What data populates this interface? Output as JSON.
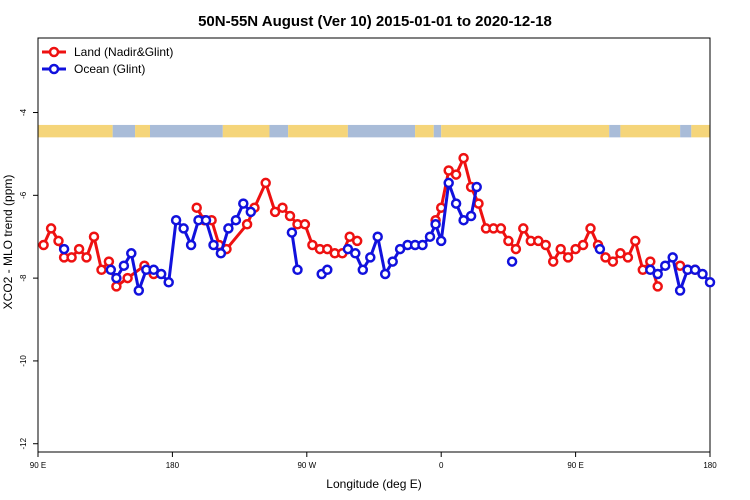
{
  "chart_data": {
    "type": "line",
    "title": "50N-55N August (Ver 10)   2015-01-01 to 2020-12-18",
    "xlabel": "Longitude (deg E)",
    "ylabel": "XCO2 - MLO trend (ppm)",
    "x_axis_note": "x values are positions along the axis in degrees, 0 = 90 E at left edge, 360 = 90 E at right edge",
    "xlim": [
      0,
      360
    ],
    "ylim": [
      -12.2,
      -2.2
    ],
    "x_ticks": [
      {
        "value": 0,
        "label": "90 E"
      },
      {
        "value": 72,
        "label": "180"
      },
      {
        "value": 144,
        "label": "90 W"
      },
      {
        "value": 216,
        "label": "0"
      },
      {
        "value": 288,
        "label": "90 E"
      },
      {
        "value": 360,
        "label": "180"
      }
    ],
    "y_ticks": [
      {
        "value": -4,
        "label": "-4"
      },
      {
        "value": -6,
        "label": "-6"
      },
      {
        "value": -8,
        "label": "-8"
      },
      {
        "value": -10,
        "label": "-10"
      },
      {
        "value": -12,
        "label": "-12"
      }
    ],
    "land_mask_y": [
      -4.3,
      -4.6
    ],
    "land_mask_colors": {
      "land": "#f5d57a",
      "ocean": "#a9bcd8"
    },
    "land_mask": [
      {
        "x0": 0,
        "x1": 40,
        "type": "land"
      },
      {
        "x0": 40,
        "x1": 52,
        "type": "ocean"
      },
      {
        "x0": 52,
        "x1": 60,
        "type": "land"
      },
      {
        "x0": 60,
        "x1": 99,
        "type": "ocean"
      },
      {
        "x0": 99,
        "x1": 124,
        "type": "land"
      },
      {
        "x0": 124,
        "x1": 134,
        "type": "ocean"
      },
      {
        "x0": 134,
        "x1": 166,
        "type": "land"
      },
      {
        "x0": 166,
        "x1": 202,
        "type": "ocean"
      },
      {
        "x0": 202,
        "x1": 212,
        "type": "land"
      },
      {
        "x0": 212,
        "x1": 216,
        "type": "ocean"
      },
      {
        "x0": 216,
        "x1": 306,
        "type": "land"
      },
      {
        "x0": 306,
        "x1": 312,
        "type": "ocean"
      },
      {
        "x0": 312,
        "x1": 344,
        "type": "land"
      },
      {
        "x0": 344,
        "x1": 350,
        "type": "ocean"
      },
      {
        "x0": 350,
        "x1": 360,
        "type": "land"
      }
    ],
    "legend_position": "top-left",
    "series": [
      {
        "name": "Land (Nadir&Glint)",
        "color": "#ee1111",
        "segments": [
          [
            [
              3,
              -7.2
            ],
            [
              7,
              -6.8
            ],
            [
              11,
              -7.1
            ],
            [
              14,
              -7.5
            ],
            [
              18,
              -7.5
            ],
            [
              22,
              -7.3
            ],
            [
              26,
              -7.5
            ],
            [
              30,
              -7.0
            ],
            [
              34,
              -7.8
            ],
            [
              38,
              -7.6
            ],
            [
              42,
              -8.2
            ],
            [
              48,
              -8.0
            ],
            [
              57,
              -7.7
            ],
            [
              62,
              -7.9
            ]
          ],
          [
            [
              85,
              -6.3
            ],
            [
              89,
              -6.6
            ],
            [
              93,
              -6.6
            ],
            [
              97,
              -7.2
            ],
            [
              101,
              -7.3
            ],
            [
              112,
              -6.7
            ],
            [
              116,
              -6.3
            ],
            [
              122,
              -5.7
            ],
            [
              127,
              -6.4
            ],
            [
              131,
              -6.3
            ],
            [
              135,
              -6.5
            ],
            [
              139,
              -6.7
            ],
            [
              143,
              -6.7
            ],
            [
              147,
              -7.2
            ],
            [
              151,
              -7.3
            ],
            [
              155,
              -7.3
            ],
            [
              159,
              -7.4
            ],
            [
              163,
              -7.4
            ],
            [
              167,
              -7.0
            ],
            [
              171,
              -7.1
            ]
          ],
          [
            [
              213,
              -6.6
            ],
            [
              216,
              -6.3
            ],
            [
              220,
              -5.4
            ],
            [
              224,
              -5.5
            ],
            [
              228,
              -5.1
            ],
            [
              232,
              -5.8
            ],
            [
              236,
              -6.2
            ],
            [
              240,
              -6.8
            ],
            [
              244,
              -6.8
            ],
            [
              248,
              -6.8
            ],
            [
              252,
              -7.1
            ],
            [
              256,
              -7.3
            ],
            [
              260,
              -6.8
            ],
            [
              264,
              -7.1
            ],
            [
              268,
              -7.1
            ],
            [
              272,
              -7.2
            ],
            [
              276,
              -7.6
            ],
            [
              280,
              -7.3
            ],
            [
              284,
              -7.5
            ],
            [
              288,
              -7.3
            ],
            [
              292,
              -7.2
            ],
            [
              296,
              -6.8
            ],
            [
              300,
              -7.2
            ],
            [
              304,
              -7.5
            ],
            [
              308,
              -7.6
            ],
            [
              312,
              -7.4
            ],
            [
              316,
              -7.5
            ],
            [
              320,
              -7.1
            ],
            [
              324,
              -7.8
            ],
            [
              328,
              -7.6
            ],
            [
              332,
              -8.2
            ]
          ],
          [
            [
              344,
              -7.7
            ],
            [
              348,
              -7.8
            ],
            [
              352,
              -7.8
            ]
          ]
        ]
      },
      {
        "name": "Ocean (Glint)",
        "color": "#1111dd",
        "segments": [
          [
            [
              14,
              -7.3
            ]
          ],
          [
            [
              39,
              -7.8
            ],
            [
              42,
              -8.0
            ],
            [
              46,
              -7.7
            ],
            [
              50,
              -7.4
            ],
            [
              54,
              -8.3
            ],
            [
              58,
              -7.8
            ],
            [
              62,
              -7.8
            ],
            [
              66,
              -7.9
            ],
            [
              70,
              -8.1
            ],
            [
              74,
              -6.6
            ],
            [
              78,
              -6.8
            ],
            [
              82,
              -7.2
            ],
            [
              86,
              -6.6
            ],
            [
              90,
              -6.6
            ],
            [
              94,
              -7.2
            ],
            [
              98,
              -7.4
            ],
            [
              102,
              -6.8
            ],
            [
              106,
              -6.6
            ],
            [
              110,
              -6.2
            ],
            [
              114,
              -6.4
            ]
          ],
          [
            [
              136,
              -6.9
            ],
            [
              139,
              -7.8
            ]
          ],
          [
            [
              152,
              -7.9
            ],
            [
              155,
              -7.8
            ]
          ],
          [
            [
              166,
              -7.3
            ],
            [
              170,
              -7.4
            ],
            [
              174,
              -7.8
            ],
            [
              178,
              -7.5
            ],
            [
              182,
              -7.0
            ],
            [
              186,
              -7.9
            ],
            [
              190,
              -7.6
            ],
            [
              194,
              -7.3
            ],
            [
              198,
              -7.2
            ],
            [
              202,
              -7.2
            ],
            [
              206,
              -7.2
            ],
            [
              210,
              -7.0
            ],
            [
              213,
              -6.7
            ],
            [
              216,
              -7.1
            ],
            [
              220,
              -5.7
            ],
            [
              224,
              -6.2
            ],
            [
              228,
              -6.6
            ],
            [
              232,
              -6.5
            ],
            [
              235,
              -5.8
            ]
          ],
          [
            [
              254,
              -7.6
            ]
          ],
          [
            [
              301,
              -7.3
            ]
          ],
          [
            [
              328,
              -7.8
            ],
            [
              332,
              -7.9
            ],
            [
              336,
              -7.7
            ],
            [
              340,
              -7.5
            ],
            [
              344,
              -8.3
            ],
            [
              348,
              -7.8
            ],
            [
              352,
              -7.8
            ],
            [
              356,
              -7.9
            ],
            [
              360,
              -8.1
            ]
          ]
        ]
      }
    ]
  }
}
